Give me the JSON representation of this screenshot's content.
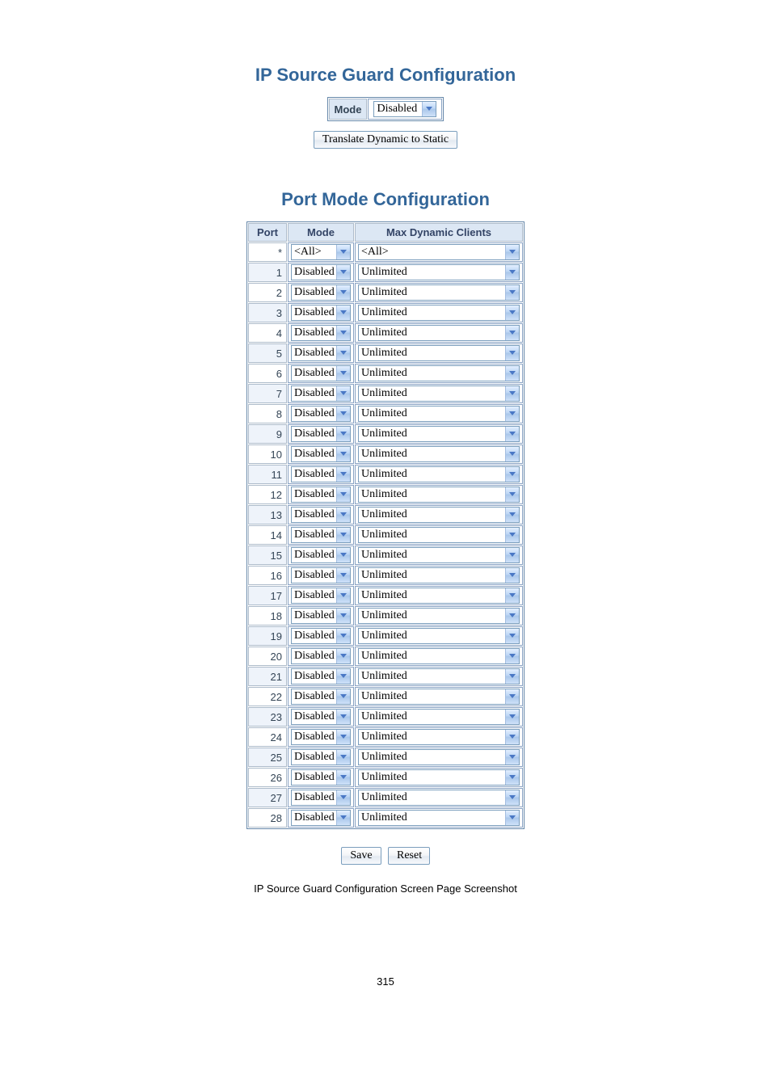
{
  "titles": {
    "ip_source_guard": "IP Source Guard Configuration",
    "port_mode": "Port Mode Configuration"
  },
  "mode_row": {
    "label": "Mode",
    "value": "Disabled"
  },
  "translate_button": "Translate Dynamic to Static",
  "columns": {
    "port": "Port",
    "mode": "Mode",
    "max": "Max Dynamic Clients"
  },
  "wildcard_row": {
    "port": "*",
    "mode": "<All>",
    "max": "<All>"
  },
  "default_port_values": {
    "mode": "Disabled",
    "max": "Unlimited"
  },
  "port_count": 28,
  "buttons": {
    "save": "Save",
    "reset": "Reset"
  },
  "caption": "IP Source Guard Configuration Screen Page Screenshot",
  "page_number": "315",
  "colors": {
    "title_color": "#336699",
    "header_bg": "#dce7f4",
    "border_outer": "#6688aa",
    "border_cell": "#8aa3c4",
    "arrow_color": "#4a78c5"
  }
}
